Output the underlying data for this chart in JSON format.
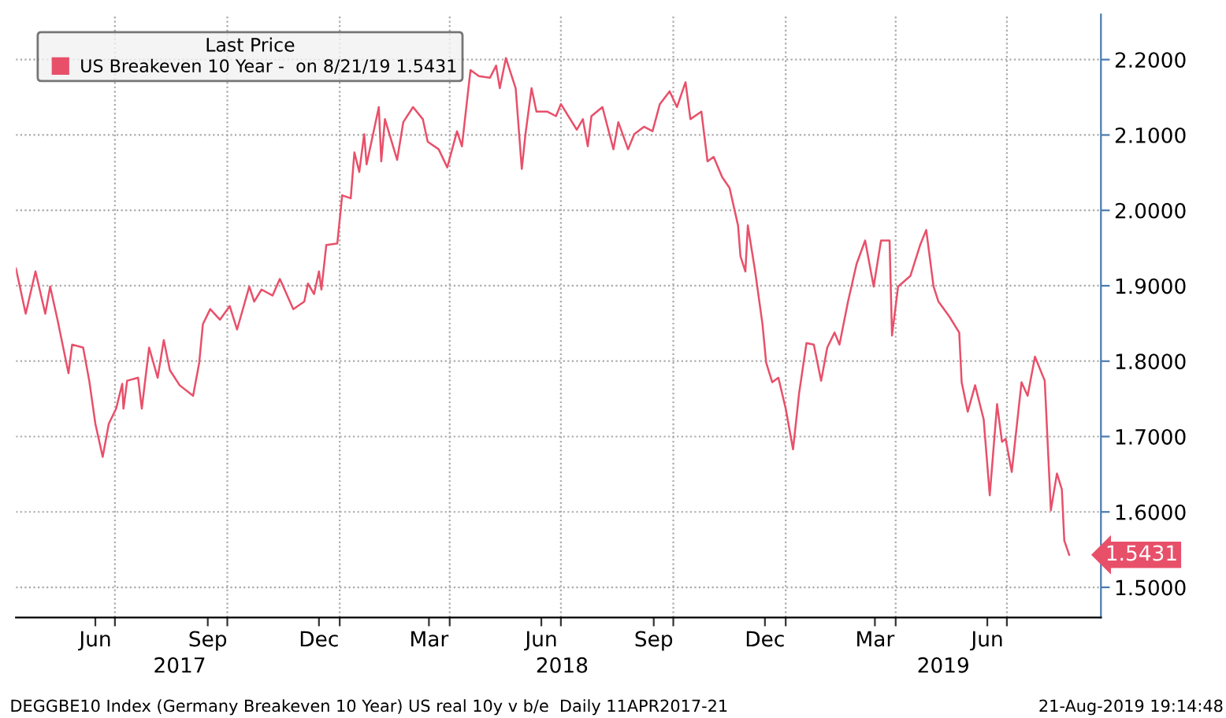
{
  "chart_data": {
    "type": "line",
    "legend_title": "Last Price",
    "legend": "top left",
    "grid": true,
    "xlim": [
      "2017-04-11",
      "2019-09-16"
    ],
    "xticks": [
      {
        "value": "2017-06-15",
        "label": "Jun"
      },
      {
        "value": "2017-07-01",
        "label": null
      },
      {
        "value": "2017-09-15",
        "label": "Sep"
      },
      {
        "value": "2017-10-01",
        "label": null
      },
      {
        "value": "2017-12-15",
        "label": "Dec"
      },
      {
        "value": "2018-01-01",
        "label": null
      },
      {
        "value": "2018-03-15",
        "label": "Mar"
      },
      {
        "value": "2018-04-01",
        "label": null
      },
      {
        "value": "2018-06-15",
        "label": "Jun"
      },
      {
        "value": "2018-07-01",
        "label": null
      },
      {
        "value": "2018-09-15",
        "label": "Sep"
      },
      {
        "value": "2018-10-01",
        "label": null
      },
      {
        "value": "2018-12-15",
        "label": "Dec"
      },
      {
        "value": "2019-01-01",
        "label": null
      },
      {
        "value": "2019-03-15",
        "label": "Mar"
      },
      {
        "value": "2019-04-01",
        "label": null
      },
      {
        "value": "2019-06-15",
        "label": "Jun"
      },
      {
        "value": "2019-07-01",
        "label": null
      }
    ],
    "x2lim": [
      "2017-04-11",
      "2019-09-16"
    ],
    "x2ticks": [
      {
        "value": "2017-08-23",
        "label": "2017"
      },
      {
        "value": "2018-07-02",
        "label": "2018"
      },
      {
        "value": "2019-05-10",
        "label": "2019"
      }
    ],
    "ylim": [
      1.46,
      2.26
    ],
    "yticks": [
      {
        "value": 1.5,
        "label": "1.5000"
      },
      {
        "value": 1.6,
        "label": "1.6000"
      },
      {
        "value": 1.7,
        "label": "1.7000"
      },
      {
        "value": 1.8,
        "label": "1.8000"
      },
      {
        "value": 1.9,
        "label": "1.9000"
      },
      {
        "value": 2.0,
        "label": "2.0000"
      },
      {
        "value": 2.1,
        "label": "2.1000"
      },
      {
        "value": 2.2,
        "label": "2.2000"
      }
    ],
    "annotations": [
      {
        "text": "1.5431",
        "x": "2019-08-21",
        "y": 1.5431
      },
      "DEGGBE10 Index (Germany Breakeven 10 Year) US real 10y v b/e  Daily 11APR2017-21",
      "21-Aug-2019 19:14:48"
    ],
    "series": [
      {
        "name": "US Breakeven 10 Year -  on 8/21/19 1.5431",
        "color": "#e8506a",
        "x": [
          "2017-04-11",
          "2017-04-19",
          "2017-04-27",
          "2017-05-05",
          "2017-05-09",
          "2017-05-15",
          "2017-05-24",
          "2017-05-27",
          "2017-06-05",
          "2017-06-10",
          "2017-06-15",
          "2017-06-21",
          "2017-06-26",
          "2017-07-02",
          "2017-07-07",
          "2017-07-08",
          "2017-07-11",
          "2017-07-20",
          "2017-07-23",
          "2017-07-29",
          "2017-08-05",
          "2017-08-10",
          "2017-08-15",
          "2017-08-23",
          "2017-09-03",
          "2017-09-08",
          "2017-09-11",
          "2017-09-17",
          "2017-09-25",
          "2017-10-03",
          "2017-10-09",
          "2017-10-19",
          "2017-10-23",
          "2017-10-29",
          "2017-11-07",
          "2017-11-13",
          "2017-11-24",
          "2017-12-03",
          "2017-12-06",
          "2017-12-11",
          "2017-12-15",
          "2017-12-17",
          "2017-12-21",
          "2017-12-30",
          "2018-01-03",
          "2018-01-10",
          "2018-01-13",
          "2018-01-17",
          "2018-01-21",
          "2018-01-23",
          "2018-02-02",
          "2018-02-04",
          "2018-02-07",
          "2018-02-17",
          "2018-02-22",
          "2018-03-02",
          "2018-03-10",
          "2018-03-14",
          "2018-03-23",
          "2018-03-30",
          "2018-04-07",
          "2018-04-11",
          "2018-04-18",
          "2018-04-25",
          "2018-05-04",
          "2018-05-09",
          "2018-05-12",
          "2018-05-17",
          "2018-05-25",
          "2018-05-30",
          "2018-06-02",
          "2018-06-07",
          "2018-06-11",
          "2018-06-20",
          "2018-06-27",
          "2018-07-01",
          "2018-07-14",
          "2018-07-19",
          "2018-07-23",
          "2018-07-26",
          "2018-08-04",
          "2018-08-13",
          "2018-08-17",
          "2018-08-25",
          "2018-08-30",
          "2018-09-07",
          "2018-09-14",
          "2018-09-20",
          "2018-09-28",
          "2018-10-04",
          "2018-10-11",
          "2018-10-15",
          "2018-10-24",
          "2018-10-29",
          "2018-11-03",
          "2018-11-10",
          "2018-11-16",
          "2018-11-23",
          "2018-11-25",
          "2018-11-29",
          "2018-12-01",
          "2018-12-07",
          "2018-12-13",
          "2018-12-16",
          "2018-12-21",
          "2018-12-26",
          "2019-01-01",
          "2019-01-07",
          "2019-01-12",
          "2019-01-18",
          "2019-01-24",
          "2019-01-30",
          "2019-02-04",
          "2019-02-10",
          "2019-02-14",
          "2019-02-21",
          "2019-02-28",
          "2019-03-07",
          "2019-03-14",
          "2019-03-20",
          "2019-03-27",
          "2019-03-29",
          "2019-04-03",
          "2019-04-13",
          "2019-04-21",
          "2019-04-26",
          "2019-05-02",
          "2019-05-06",
          "2019-05-15",
          "2019-05-23",
          "2019-05-25",
          "2019-05-30",
          "2019-06-05",
          "2019-06-12",
          "2019-06-17",
          "2019-06-23",
          "2019-06-27",
          "2019-06-30",
          "2019-07-05",
          "2019-07-13",
          "2019-07-18",
          "2019-07-24",
          "2019-08-01",
          "2019-08-06",
          "2019-08-11",
          "2019-08-15",
          "2019-08-17",
          "2019-08-21"
        ],
        "values": [
          1.923,
          1.863,
          1.919,
          1.863,
          1.899,
          1.855,
          1.784,
          1.822,
          1.818,
          1.774,
          1.717,
          1.673,
          1.717,
          1.737,
          1.77,
          1.737,
          1.774,
          1.778,
          1.737,
          1.818,
          1.778,
          1.828,
          1.788,
          1.768,
          1.754,
          1.798,
          1.849,
          1.869,
          1.855,
          1.873,
          1.842,
          1.899,
          1.879,
          1.895,
          1.887,
          1.909,
          1.869,
          1.879,
          1.903,
          1.889,
          1.919,
          1.895,
          1.954,
          1.956,
          2.02,
          2.016,
          2.077,
          2.051,
          2.101,
          2.061,
          2.137,
          2.065,
          2.121,
          2.067,
          2.117,
          2.137,
          2.121,
          2.091,
          2.081,
          2.057,
          2.105,
          2.085,
          2.186,
          2.178,
          2.176,
          2.192,
          2.162,
          2.202,
          2.162,
          2.055,
          2.101,
          2.162,
          2.131,
          2.131,
          2.125,
          2.141,
          2.107,
          2.121,
          2.085,
          2.125,
          2.137,
          2.081,
          2.117,
          2.081,
          2.101,
          2.111,
          2.105,
          2.141,
          2.158,
          2.137,
          2.17,
          2.121,
          2.131,
          2.065,
          2.071,
          2.044,
          2.03,
          1.98,
          1.939,
          1.919,
          1.98,
          1.919,
          1.849,
          1.798,
          1.772,
          1.778,
          1.737,
          1.683,
          1.758,
          1.824,
          1.822,
          1.774,
          1.818,
          1.838,
          1.822,
          1.879,
          1.929,
          1.96,
          1.899,
          1.96,
          1.96,
          1.834,
          1.899,
          1.913,
          1.954,
          1.974,
          1.899,
          1.879,
          1.859,
          1.838,
          1.772,
          1.733,
          1.768,
          1.723,
          1.622,
          1.743,
          1.693,
          1.697,
          1.653,
          1.772,
          1.754,
          1.806,
          1.774,
          1.602,
          1.651,
          1.63,
          1.562,
          1.5431
        ]
      }
    ]
  }
}
